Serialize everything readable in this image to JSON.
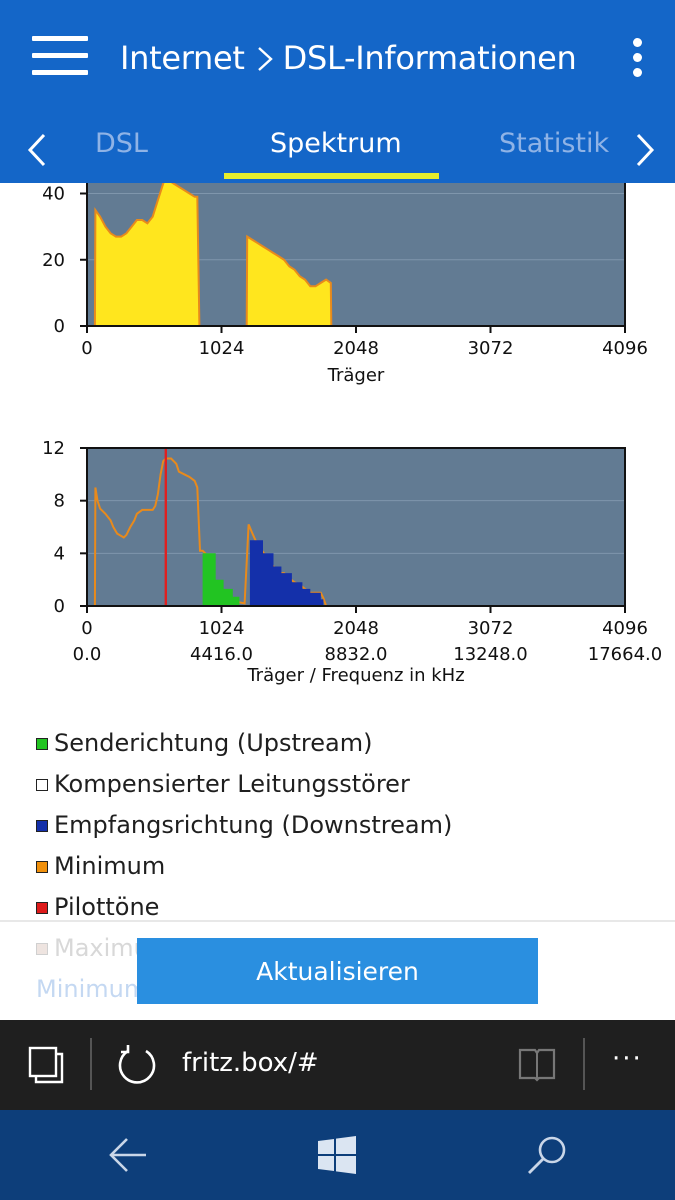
{
  "header": {
    "breadcrumb_parent": "Internet",
    "breadcrumb_current": "DSL-Informationen",
    "menu_icon": "hamburger-icon",
    "more_icon": "kebab-menu-icon",
    "tabs": [
      {
        "label": "DSL",
        "active": false
      },
      {
        "label": "Spektrum",
        "active": true
      },
      {
        "label": "Statistik",
        "active": false
      }
    ],
    "colors": {
      "background": "#1466c8",
      "active_tab_underline": "#e6ef2d",
      "inactive_tab": "#8fb3e6"
    }
  },
  "chart_data": [
    {
      "type": "area",
      "title": "",
      "xlabel": "Träger",
      "ylabel": "",
      "xlim": [
        0,
        4096
      ],
      "ylim_visible": [
        0,
        48
      ],
      "x_ticks": [
        "0",
        "1024",
        "2048",
        "3072",
        "4096"
      ],
      "y_ticks": [
        "0",
        "20",
        "40"
      ],
      "background": "#627b93",
      "series": [
        {
          "color": "#ffe61e",
          "outline": "#e88a1c",
          "points": [
            [
              60,
              0
            ],
            [
              64,
              35
            ],
            [
              100,
              33
            ],
            [
              140,
              30
            ],
            [
              180,
              28
            ],
            [
              220,
              27
            ],
            [
              260,
              27
            ],
            [
              300,
              28
            ],
            [
              340,
              30
            ],
            [
              380,
              32
            ],
            [
              420,
              32
            ],
            [
              460,
              31
            ],
            [
              500,
              33
            ],
            [
              540,
              38
            ],
            [
              580,
              43
            ],
            [
              600,
              45
            ],
            [
              620,
              44
            ],
            [
              660,
              43
            ],
            [
              700,
              42
            ],
            [
              740,
              41
            ],
            [
              780,
              40
            ],
            [
              820,
              39
            ],
            [
              840,
              39
            ],
            [
              856,
              0
            ],
            [
              1216,
              0
            ],
            [
              1220,
              27
            ],
            [
              1260,
              26
            ],
            [
              1300,
              25
            ],
            [
              1340,
              24
            ],
            [
              1380,
              23
            ],
            [
              1420,
              22
            ],
            [
              1460,
              21
            ],
            [
              1500,
              20
            ],
            [
              1540,
              18
            ],
            [
              1580,
              17
            ],
            [
              1620,
              15
            ],
            [
              1660,
              14
            ],
            [
              1700,
              12
            ],
            [
              1740,
              12
            ],
            [
              1780,
              13
            ],
            [
              1820,
              14
            ],
            [
              1856,
              13
            ],
            [
              1860,
              0
            ]
          ]
        }
      ]
    },
    {
      "type": "area",
      "title": "",
      "xlabel": "Träger / Frequenz in kHz",
      "ylabel": "",
      "xlim": [
        0,
        4096
      ],
      "ylim": [
        0,
        12
      ],
      "x_ticks": [
        "0",
        "1024",
        "2048",
        "3072",
        "4096"
      ],
      "x_ticks_secondary": [
        "0.0",
        "4416.0",
        "8832.0",
        "13248.0",
        "17664.0"
      ],
      "y_ticks": [
        "0",
        "4",
        "8",
        "12"
      ],
      "background": "#627b93",
      "pilot_tone_x": 600,
      "series": [
        {
          "name": "Minimum",
          "type": "line",
          "color": "#e88a1c",
          "points": [
            [
              60,
              0
            ],
            [
              64,
              9
            ],
            [
              80,
              8
            ],
            [
              100,
              7.4
            ],
            [
              140,
              7
            ],
            [
              180,
              6.5
            ],
            [
              200,
              6
            ],
            [
              230,
              5.5
            ],
            [
              280,
              5.2
            ],
            [
              300,
              5.4
            ],
            [
              330,
              6
            ],
            [
              360,
              6.5
            ],
            [
              380,
              7
            ],
            [
              420,
              7.3
            ],
            [
              460,
              7.3
            ],
            [
              500,
              7.3
            ],
            [
              520,
              7.6
            ],
            [
              540,
              8.5
            ],
            [
              560,
              10
            ],
            [
              580,
              11
            ],
            [
              600,
              11.2
            ],
            [
              640,
              11.2
            ],
            [
              680,
              10.8
            ],
            [
              700,
              10.2
            ],
            [
              740,
              10
            ],
            [
              780,
              9.8
            ],
            [
              820,
              9.5
            ],
            [
              840,
              9
            ],
            [
              860,
              4.2
            ],
            [
              880,
              4.2
            ],
            [
              900,
              4
            ],
            [
              920,
              2
            ],
            [
              960,
              1.7
            ],
            [
              1000,
              1.5
            ],
            [
              1040,
              1.2
            ],
            [
              1080,
              0.8
            ],
            [
              1100,
              0.5
            ],
            [
              1150,
              0.3
            ],
            [
              1200,
              0.2
            ],
            [
              1230,
              6.2
            ],
            [
              1260,
              5.5
            ],
            [
              1300,
              4.6
            ],
            [
              1340,
              4.1
            ],
            [
              1380,
              3.5
            ],
            [
              1420,
              3
            ],
            [
              1460,
              2.5
            ],
            [
              1500,
              2.5
            ],
            [
              1540,
              2.1
            ],
            [
              1580,
              1.8
            ],
            [
              1620,
              1.6
            ],
            [
              1660,
              1.3
            ],
            [
              1700,
              1
            ],
            [
              1740,
              1
            ],
            [
              1780,
              1
            ],
            [
              1800,
              0.6
            ],
            [
              1820,
              0
            ]
          ]
        },
        {
          "name": "Senderichtung (Upstream)",
          "type": "area",
          "color": "#22c422",
          "points": [
            [
              880,
              0
            ],
            [
              880,
              4
            ],
            [
              980,
              4
            ],
            [
              980,
              2
            ],
            [
              1040,
              2
            ],
            [
              1040,
              1.3
            ],
            [
              1110,
              1.3
            ],
            [
              1110,
              0.7
            ],
            [
              1160,
              0.7
            ],
            [
              1160,
              0
            ]
          ]
        },
        {
          "name": "Empfangsrichtung (Downstream)",
          "type": "area",
          "color": "#1430aa",
          "points": [
            [
              1240,
              0
            ],
            [
              1240,
              5
            ],
            [
              1340,
              5
            ],
            [
              1340,
              4
            ],
            [
              1420,
              4
            ],
            [
              1420,
              3
            ],
            [
              1480,
              3
            ],
            [
              1480,
              2.5
            ],
            [
              1560,
              2.5
            ],
            [
              1560,
              1.8
            ],
            [
              1640,
              1.8
            ],
            [
              1640,
              1.3
            ],
            [
              1700,
              1.3
            ],
            [
              1700,
              1
            ],
            [
              1780,
              1
            ],
            [
              1780,
              0.5
            ],
            [
              1800,
              0.5
            ],
            [
              1800,
              0
            ]
          ]
        }
      ]
    }
  ],
  "legend": [
    {
      "label": "Senderichtung (Upstream)",
      "color": "#22c422"
    },
    {
      "label": "Kompensierter Leitungsstörer",
      "color": "#ffffff"
    },
    {
      "label": "Empfangsrichtung (Downstream)",
      "color": "#1430aa"
    },
    {
      "label": "Minimum",
      "color": "#f0900c"
    },
    {
      "label": "Pilottöne",
      "color": "#dd1a1a"
    },
    {
      "label": "Maximu",
      "color": "#eee4e0"
    }
  ],
  "partial_text_below": "Minimum",
  "update_button_label": "Aktualisieren",
  "browser": {
    "tabs_icon": "tabs-icon",
    "refresh_icon": "refresh-icon",
    "url": "fritz.box/#",
    "reading_view_icon": "reading-view-icon",
    "more_icon": "more-dots-icon",
    "more_label": "···"
  },
  "system_nav": {
    "back_icon": "back-arrow-icon",
    "start_icon": "windows-start-icon",
    "search_icon": "search-icon"
  }
}
